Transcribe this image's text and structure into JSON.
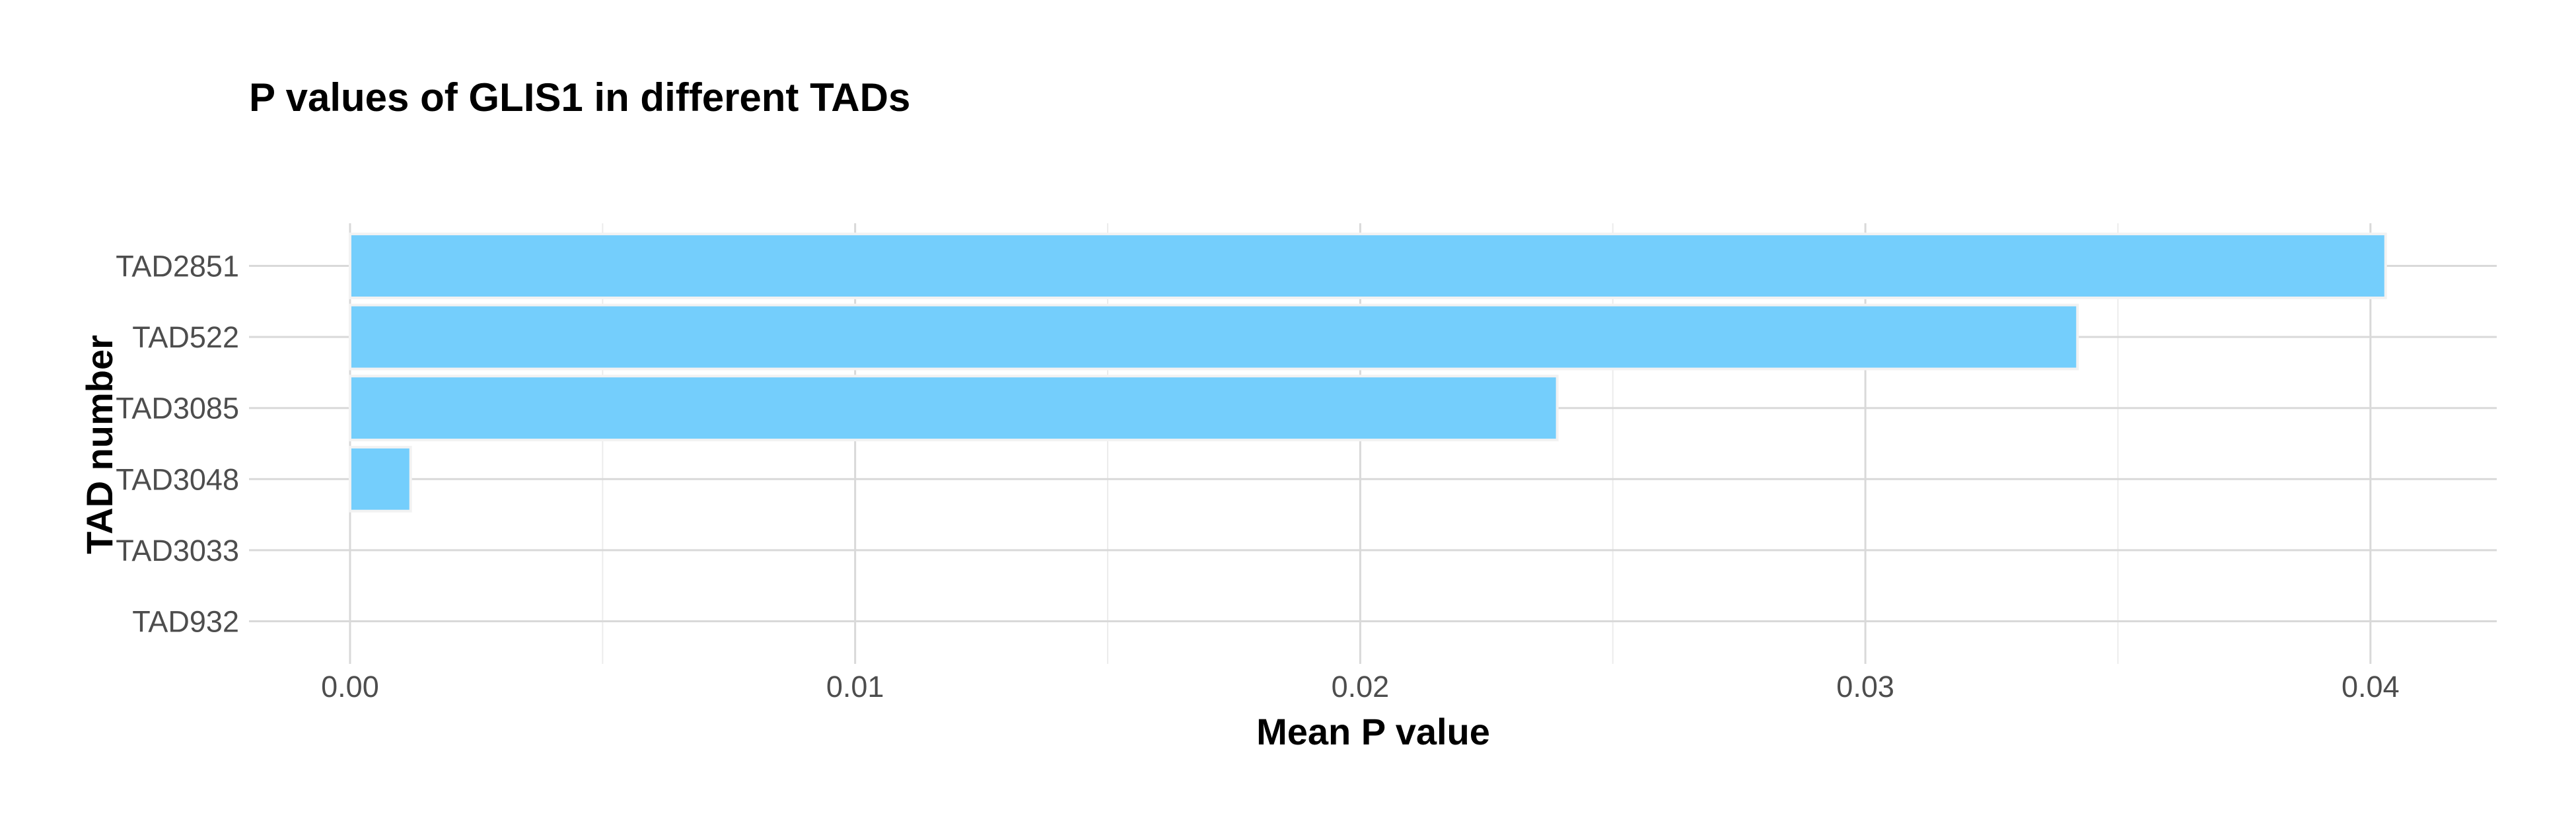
{
  "chart_data": {
    "type": "bar",
    "orientation": "horizontal",
    "title": "P values of GLIS1 in different TADs",
    "xlabel": "Mean P value",
    "ylabel": "TAD number",
    "categories": [
      "TAD2851",
      "TAD522",
      "TAD3085",
      "TAD3048",
      "TAD3033",
      "TAD932"
    ],
    "values": [
      0.0403,
      0.0342,
      0.0239,
      0.0012,
      0.0,
      0.0
    ],
    "xlim": [
      -0.002,
      0.0425
    ],
    "xticks": [
      0.0,
      0.01,
      0.02,
      0.03,
      0.04
    ],
    "xtick_labels": [
      "0.00",
      "0.01",
      "0.02",
      "0.03",
      "0.04"
    ],
    "grid": true,
    "bar_color": "#74cefc"
  }
}
